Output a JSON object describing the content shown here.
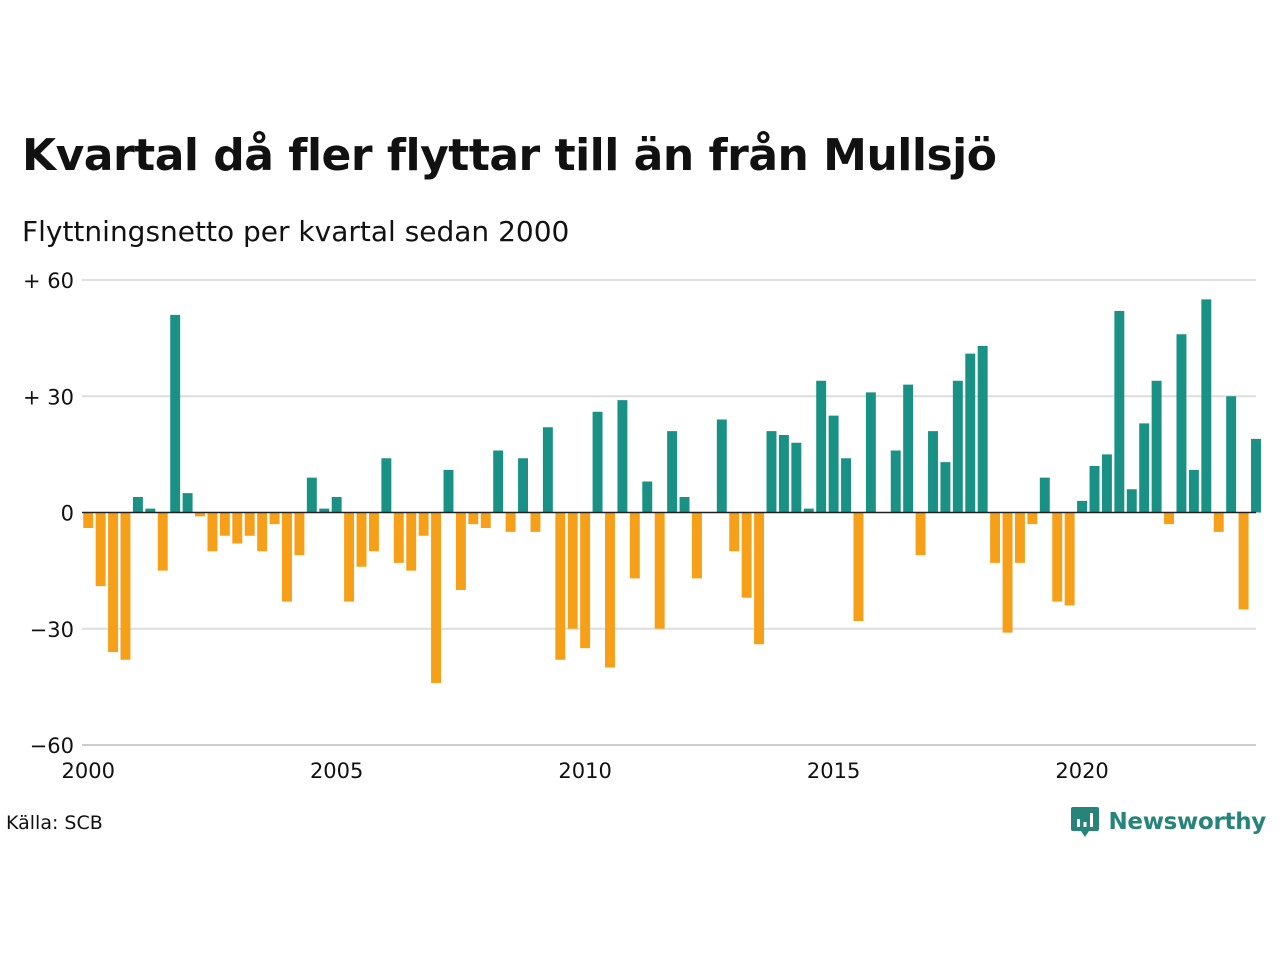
{
  "title": "Kvartal då fler flyttar till än från Mullsjö",
  "subtitle": "Flyttningsnetto per kvartal sedan 2000",
  "source": "Källa: SCB",
  "brand": {
    "name": "Newsworthy",
    "icon": "newsworthy-logo-icon",
    "color": "#26847a"
  },
  "colors": {
    "positive": "#1a9185",
    "negative": "#f6a01a",
    "grid": "#dedede",
    "zero_line": "#222222"
  },
  "chart_data": {
    "type": "bar",
    "title": "Kvartal då fler flyttar till än från Mullsjö",
    "subtitle": "Flyttningsnetto per kvartal sedan 2000",
    "xlabel": "",
    "ylabel": "",
    "ylim": [
      -60,
      60
    ],
    "xlim": [
      2000,
      2023.75
    ],
    "yticks": [
      {
        "value": 60,
        "label": "+ 60"
      },
      {
        "value": 30,
        "label": "+ 30"
      },
      {
        "value": 0,
        "label": "0"
      },
      {
        "value": -30,
        "label": "−30"
      },
      {
        "value": -60,
        "label": "−60"
      }
    ],
    "xticks": [
      {
        "value": 2000,
        "label": "2000"
      },
      {
        "value": 2005,
        "label": "2005"
      },
      {
        "value": 2010,
        "label": "2010"
      },
      {
        "value": 2015,
        "label": "2015"
      },
      {
        "value": 2020,
        "label": "2020"
      }
    ],
    "grid": true,
    "start": "2000 Q1",
    "frequency": "quarterly",
    "values": [
      -4,
      -19,
      -36,
      -38,
      4,
      1,
      -15,
      51,
      5,
      -1,
      -10,
      -6,
      -8,
      -6,
      -10,
      -3,
      -23,
      -11,
      9,
      1,
      4,
      -23,
      -14,
      -10,
      14,
      -13,
      -15,
      -6,
      -44,
      11,
      -20,
      -3,
      -4,
      16,
      -5,
      14,
      -5,
      22,
      -38,
      -30,
      -35,
      26,
      -40,
      29,
      -17,
      8,
      -30,
      21,
      4,
      -17,
      0,
      24,
      -10,
      -22,
      -34,
      21,
      20,
      18,
      1,
      34,
      25,
      14,
      -28,
      31,
      0,
      16,
      33,
      -11,
      21,
      13,
      34,
      41,
      43,
      -13,
      -31,
      -13,
      -3,
      9,
      -23,
      -24,
      3,
      12,
      15,
      52,
      6,
      23,
      34,
      -3,
      46,
      11,
      55,
      -5,
      30,
      -25,
      19
    ]
  }
}
